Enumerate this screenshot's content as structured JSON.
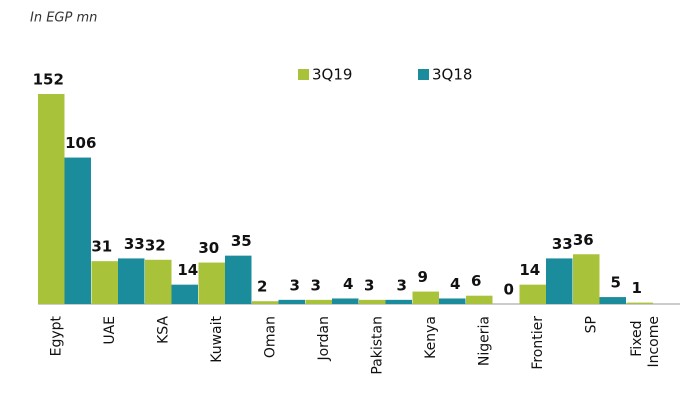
{
  "chart_data": {
    "type": "bar",
    "subtitle": "In EGP mn",
    "categories": [
      "Egypt",
      "UAE",
      "KSA",
      "Kuwait",
      "Oman",
      "Jordan",
      "Pakistan",
      "Kenya",
      "Nigeria",
      "Frontier",
      "SP",
      "Fixed Income"
    ],
    "series": [
      {
        "name": "3Q19",
        "color": "#a8c23a",
        "values": [
          152,
          31,
          32,
          30,
          2,
          3,
          3,
          9,
          6,
          14,
          36,
          1
        ]
      },
      {
        "name": "3Q18",
        "color": "#1b8c9b",
        "values": [
          106,
          33,
          14,
          35,
          3,
          4,
          3,
          4,
          0,
          33,
          5,
          null
        ]
      }
    ],
    "legend": "top"
  }
}
